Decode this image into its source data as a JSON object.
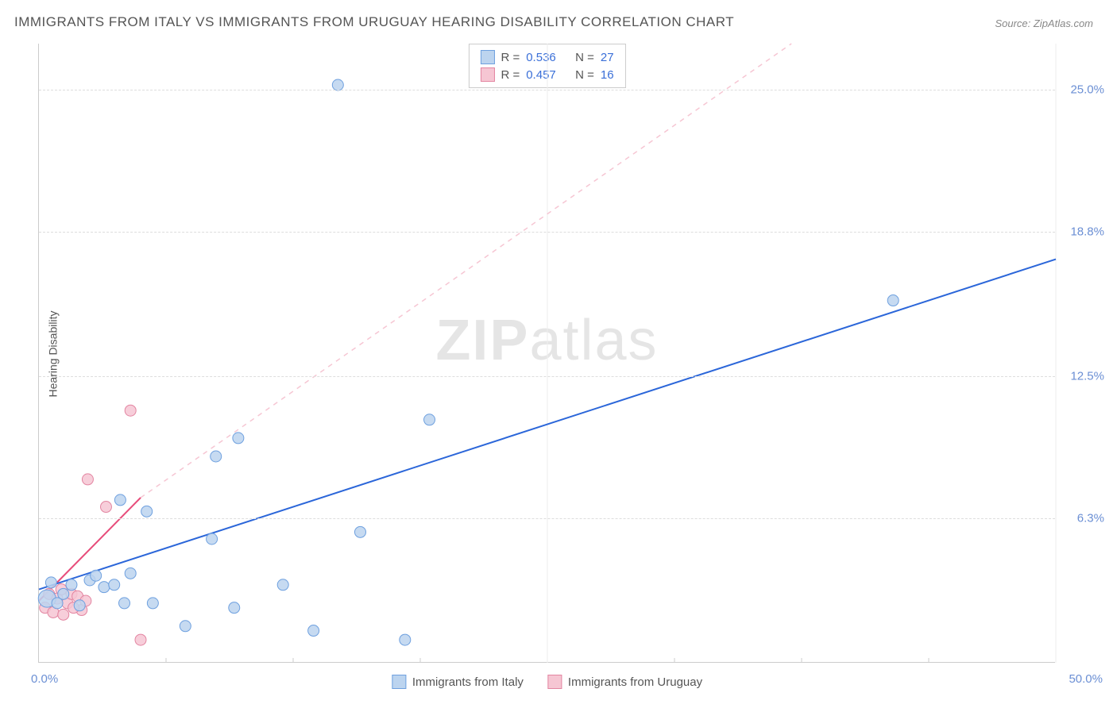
{
  "title": "IMMIGRANTS FROM ITALY VS IMMIGRANTS FROM URUGUAY HEARING DISABILITY CORRELATION CHART",
  "source": "Source: ZipAtlas.com",
  "y_axis_label": "Hearing Disability",
  "watermark_prefix": "ZIP",
  "watermark_suffix": "atlas",
  "chart": {
    "type": "scatter",
    "xlim": [
      0,
      50
    ],
    "ylim": [
      0,
      27
    ],
    "yticks": [
      {
        "value": 6.3,
        "label": "6.3%"
      },
      {
        "value": 12.5,
        "label": "12.5%"
      },
      {
        "value": 18.8,
        "label": "18.8%"
      },
      {
        "value": 25.0,
        "label": "25.0%"
      }
    ],
    "x_origin_label": "0.0%",
    "x_max_label": "50.0%",
    "xticks_minor": [
      6.25,
      12.5,
      18.75,
      25,
      31.25,
      37.5,
      43.75,
      50
    ],
    "background_color": "#ffffff",
    "grid_color": "#dddddd",
    "axis_color": "#cccccc",
    "tick_label_color": "#6b8fd4",
    "marker_radius": 7,
    "marker_stroke_width": 1,
    "series": [
      {
        "id": "italy",
        "label": "Immigrants from Italy",
        "R": "0.536",
        "N": "27",
        "fill": "#bcd4ef",
        "stroke": "#6ea0df",
        "trend": {
          "x1": 0,
          "y1": 3.2,
          "x2": 50,
          "y2": 17.6,
          "stroke": "#2b66d9",
          "width": 2,
          "dash": "none",
          "extra_dash_to": null
        },
        "points": [
          {
            "x": 0.4,
            "y": 2.8,
            "r": 11
          },
          {
            "x": 0.6,
            "y": 3.5
          },
          {
            "x": 0.9,
            "y": 2.6
          },
          {
            "x": 1.2,
            "y": 3.0
          },
          {
            "x": 1.6,
            "y": 3.4
          },
          {
            "x": 2.0,
            "y": 2.5
          },
          {
            "x": 2.5,
            "y": 3.6
          },
          {
            "x": 2.8,
            "y": 3.8
          },
          {
            "x": 3.2,
            "y": 3.3
          },
          {
            "x": 3.7,
            "y": 3.4
          },
          {
            "x": 4.0,
            "y": 7.1
          },
          {
            "x": 4.2,
            "y": 2.6
          },
          {
            "x": 4.5,
            "y": 3.9
          },
          {
            "x": 5.3,
            "y": 6.6
          },
          {
            "x": 5.6,
            "y": 2.6
          },
          {
            "x": 7.2,
            "y": 1.6
          },
          {
            "x": 8.5,
            "y": 5.4
          },
          {
            "x": 8.7,
            "y": 9.0
          },
          {
            "x": 9.6,
            "y": 2.4
          },
          {
            "x": 9.8,
            "y": 9.8
          },
          {
            "x": 12.0,
            "y": 3.4
          },
          {
            "x": 13.5,
            "y": 1.4
          },
          {
            "x": 14.7,
            "y": 25.2
          },
          {
            "x": 15.8,
            "y": 5.7
          },
          {
            "x": 18.0,
            "y": 1.0
          },
          {
            "x": 19.2,
            "y": 10.6
          },
          {
            "x": 42.0,
            "y": 15.8
          }
        ]
      },
      {
        "id": "uruguay",
        "label": "Immigrants from Uruguay",
        "R": "0.457",
        "N": "16",
        "fill": "#f6c6d3",
        "stroke": "#e385a1",
        "trend": {
          "x1": 0,
          "y1": 2.7,
          "x2": 5.0,
          "y2": 7.2,
          "stroke": "#e74c7a",
          "width": 2,
          "dash": "none",
          "extra_dash_to": {
            "x": 37,
            "y": 27
          }
        },
        "points": [
          {
            "x": 0.3,
            "y": 2.4
          },
          {
            "x": 0.5,
            "y": 3.0
          },
          {
            "x": 0.7,
            "y": 2.2
          },
          {
            "x": 0.9,
            "y": 2.8
          },
          {
            "x": 1.1,
            "y": 3.2
          },
          {
            "x": 1.2,
            "y": 2.1
          },
          {
            "x": 1.4,
            "y": 2.6
          },
          {
            "x": 1.6,
            "y": 3.0
          },
          {
            "x": 1.9,
            "y": 2.9
          },
          {
            "x": 2.1,
            "y": 2.3
          },
          {
            "x": 2.3,
            "y": 2.7
          },
          {
            "x": 2.4,
            "y": 8.0
          },
          {
            "x": 3.3,
            "y": 6.8
          },
          {
            "x": 4.5,
            "y": 11.0
          },
          {
            "x": 5.0,
            "y": 1.0
          },
          {
            "x": 1.7,
            "y": 2.4
          }
        ]
      }
    ]
  }
}
